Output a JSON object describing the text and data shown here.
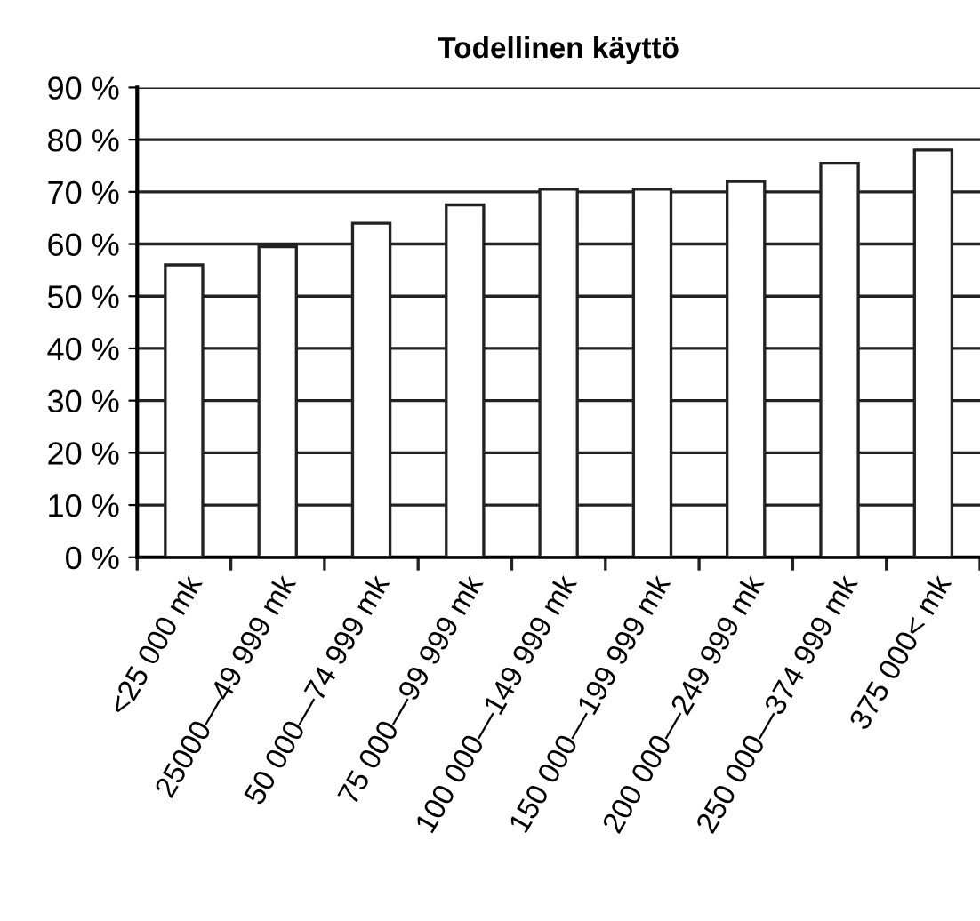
{
  "chart_data": {
    "type": "bar",
    "title": "Todellinen käyttö",
    "categories": [
      "<25 000 mk",
      "25000—49 999 mk",
      "50 000—74 999 mk",
      "75 000—99 999 mk",
      "100 000—149 999 mk",
      "150 000—199 999 mk",
      "200 000—249 999 mk",
      "250 000—374 999 mk",
      "375 000< mk"
    ],
    "values": [
      56,
      59.5,
      64,
      67.5,
      70.5,
      70.5,
      72,
      75.5,
      78
    ],
    "color": "#ffffff",
    "ylim": [
      0,
      90
    ],
    "yticks": [
      {
        "value": 0,
        "label": "0 %"
      },
      {
        "value": 10,
        "label": "10 %"
      },
      {
        "value": 20,
        "label": "20 %"
      },
      {
        "value": 30,
        "label": "30 %"
      },
      {
        "value": 40,
        "label": "40 %"
      },
      {
        "value": 50,
        "label": "50 %"
      },
      {
        "value": 60,
        "label": "60 %"
      },
      {
        "value": 70,
        "label": "70 %"
      },
      {
        "value": 80,
        "label": "80 %"
      },
      {
        "value": 90,
        "label": "90 %"
      }
    ],
    "grid": "y",
    "legend": false
  }
}
